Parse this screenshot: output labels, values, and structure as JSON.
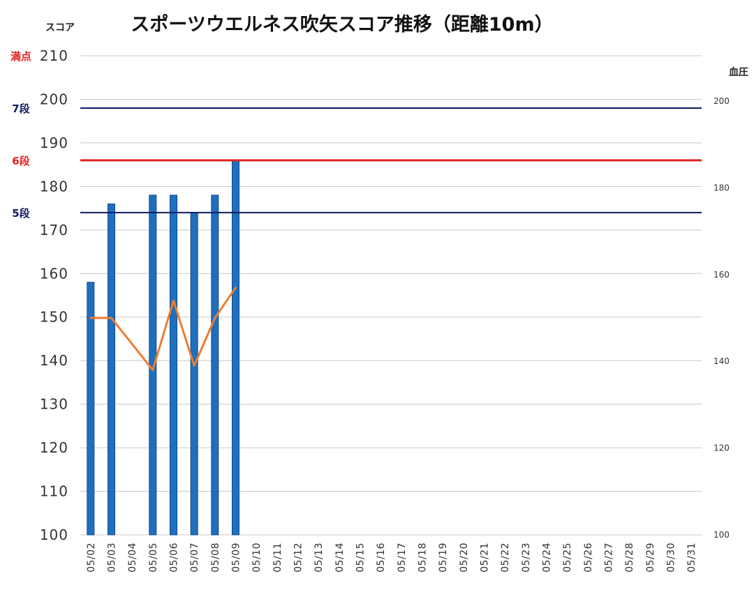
{
  "chart_data": {
    "type": "bar",
    "title": "スポーツウエルネス吹矢スコア推移（距離10m）",
    "ylabel": "スコア",
    "y2label": "血圧",
    "ylim": [
      100,
      210
    ],
    "y2lim": [
      100,
      200
    ],
    "yticks": [
      "100",
      "110",
      "120",
      "130",
      "140",
      "150",
      "160",
      "170",
      "180",
      "190",
      "200",
      "210"
    ],
    "y2ticks": [
      "100",
      "120",
      "140",
      "160",
      "180",
      "200"
    ],
    "grid": true,
    "categories": [
      "05/02",
      "05/03",
      "05/04",
      "05/05",
      "05/06",
      "05/07",
      "05/08",
      "05/09",
      "05/10",
      "05/11",
      "05/12",
      "05/13",
      "05/14",
      "05/15",
      "05/16",
      "05/17",
      "05/18",
      "05/19",
      "05/20",
      "05/21",
      "05/22",
      "05/23",
      "05/24",
      "05/25",
      "05/26",
      "05/27",
      "05/28",
      "05/29",
      "05/30",
      "05/31"
    ],
    "series": [
      {
        "type": "bar",
        "axis": "left",
        "color": "#1f6fbf",
        "values": [
          158,
          176,
          null,
          178,
          178,
          174,
          178,
          186,
          null,
          null,
          null,
          null,
          null,
          null,
          null,
          null,
          null,
          null,
          null,
          null,
          null,
          null,
          null,
          null,
          null,
          null,
          null,
          null,
          null,
          null
        ]
      },
      {
        "type": "line",
        "axis": "right",
        "color": "#ed7d31",
        "values": [
          150,
          150,
          null,
          138,
          154,
          139,
          150,
          157,
          null,
          null,
          null,
          null,
          null,
          null,
          null,
          null,
          null,
          null,
          null,
          null,
          null,
          null,
          null,
          null,
          null,
          null,
          null,
          null,
          null,
          null
        ]
      }
    ],
    "reference_lines": [
      {
        "label": "満点",
        "value": 210,
        "color": "#e02020",
        "line": false
      },
      {
        "label": "7段",
        "value": 198,
        "color": "#0d1b5e",
        "line": true
      },
      {
        "label": "6段",
        "value": 186,
        "color": "#e02020",
        "line": true
      },
      {
        "label": "5段",
        "value": 174,
        "color": "#0d1b5e",
        "line": true
      }
    ]
  }
}
